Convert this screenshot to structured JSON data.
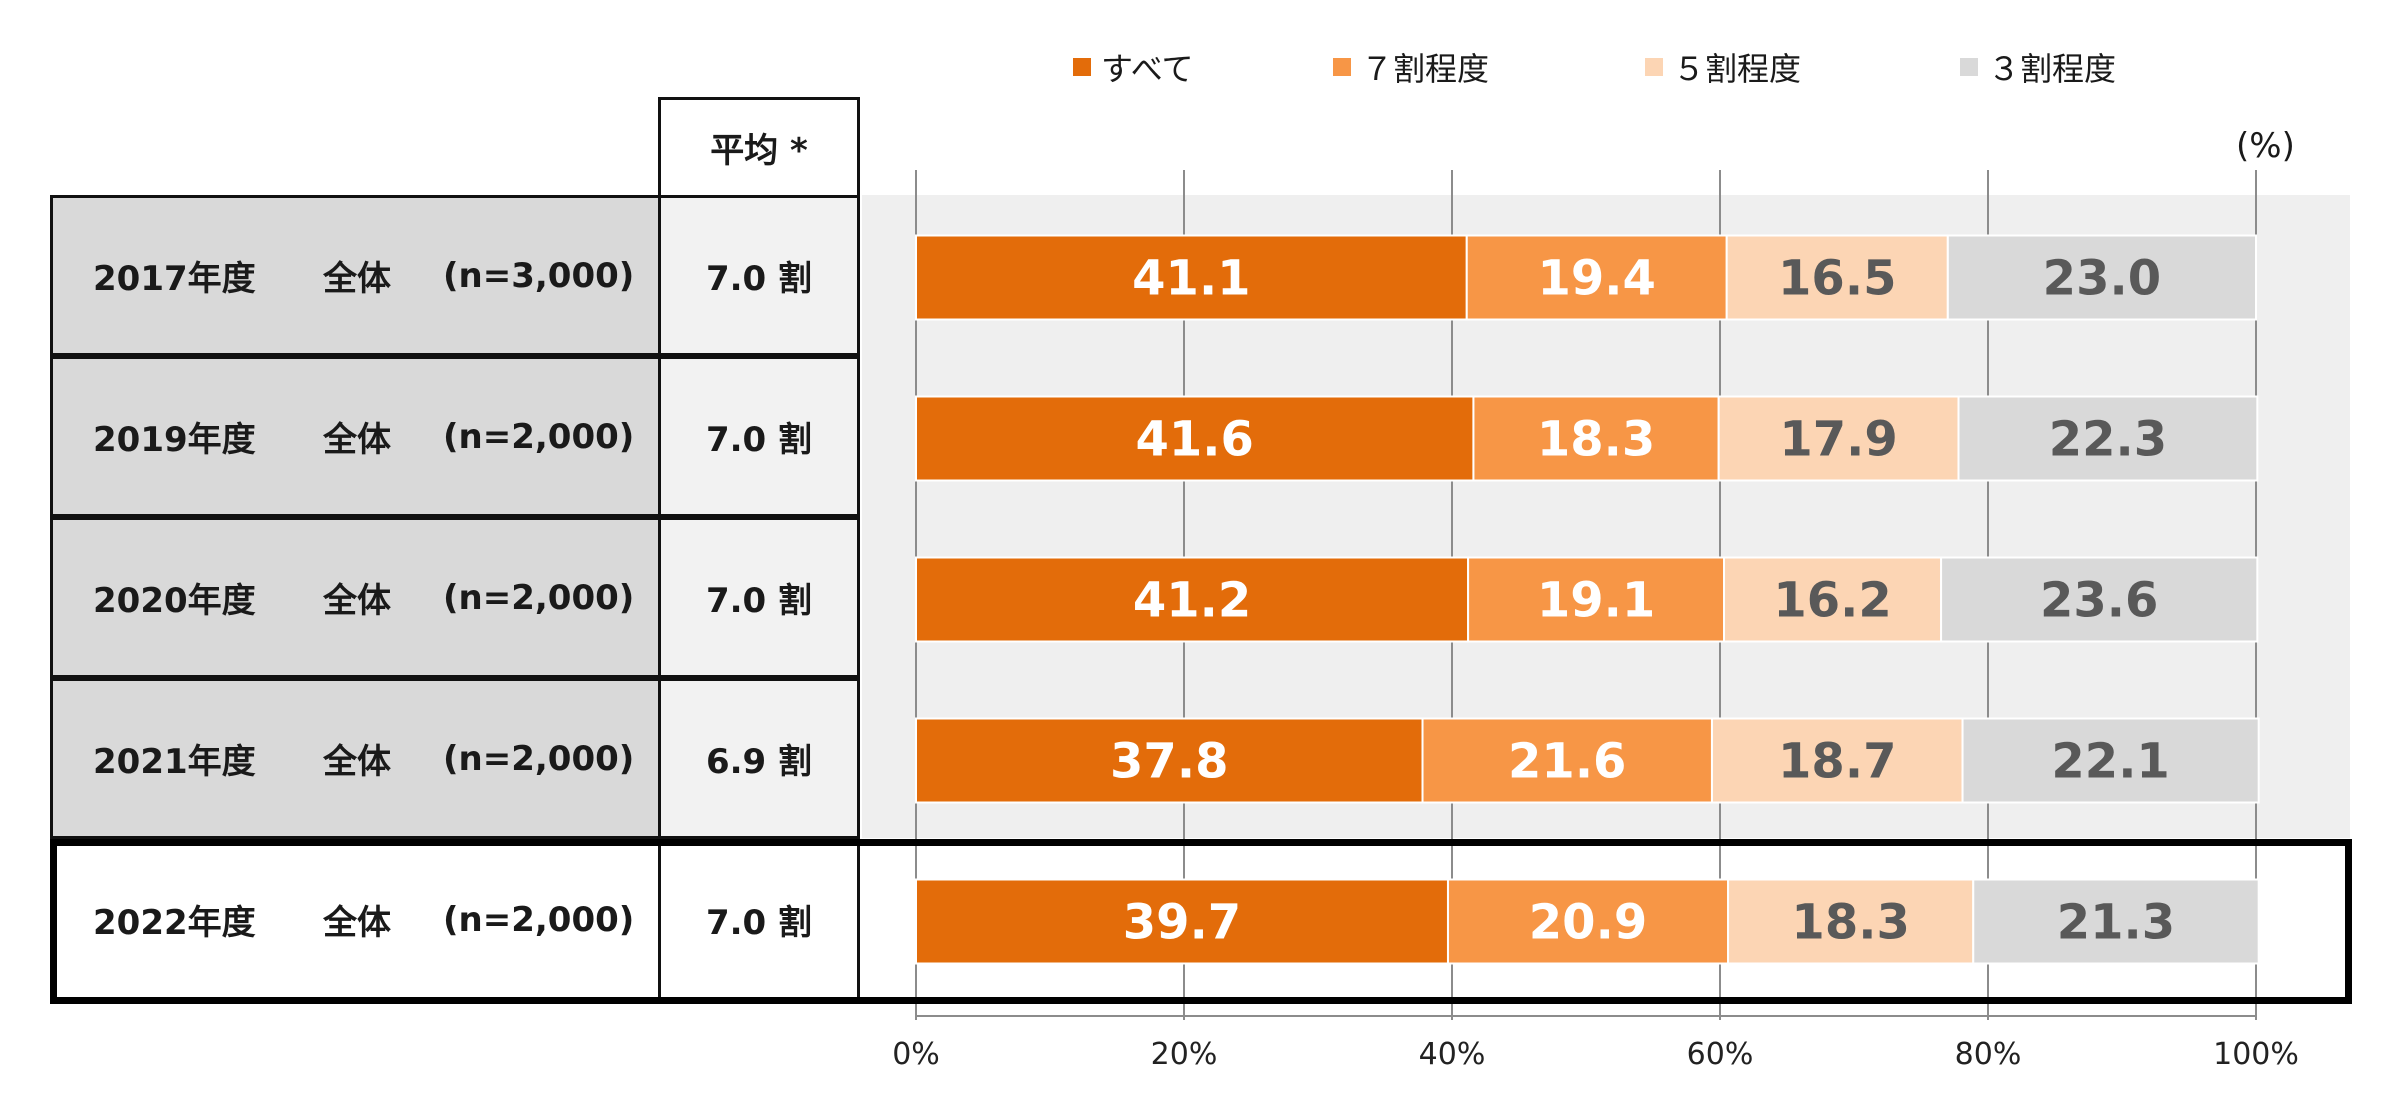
{
  "chart_data": {
    "type": "bar",
    "orientation": "horizontal-stacked",
    "unit_label": "(%)",
    "xlim": [
      0,
      100
    ],
    "x_ticks": [
      "0%",
      "20%",
      "40%",
      "60%",
      "80%",
      "100%"
    ],
    "legend_position": "top",
    "table_header": "平均 *",
    "categories": [
      {
        "year": "2017年度",
        "group": "全体",
        "n": "(n=3,000)",
        "avg": "7.0 割"
      },
      {
        "year": "2019年度",
        "group": "全体",
        "n": "(n=2,000)",
        "avg": "7.0 割"
      },
      {
        "year": "2020年度",
        "group": "全体",
        "n": "(n=2,000)",
        "avg": "7.0 割"
      },
      {
        "year": "2021年度",
        "group": "全体",
        "n": "(n=2,000)",
        "avg": "6.9 割"
      },
      {
        "year": "2022年度",
        "group": "全体",
        "n": "(n=2,000)",
        "avg": "7.0 割"
      }
    ],
    "series": [
      {
        "name": "すべて",
        "color": "#e36c0a",
        "text_color": "#ffffff",
        "values": [
          41.1,
          41.6,
          41.2,
          37.8,
          39.7
        ]
      },
      {
        "name": "７割程度",
        "color": "#f79646",
        "text_color": "#ffffff",
        "values": [
          19.4,
          18.3,
          19.1,
          21.6,
          20.9
        ]
      },
      {
        "name": "５割程度",
        "color": "#fcd5b4",
        "text_color": "#595959",
        "values": [
          16.5,
          17.9,
          16.2,
          18.7,
          18.3
        ]
      },
      {
        "name": "３割程度",
        "color": "#d9d9d9",
        "text_color": "#595959",
        "values": [
          23.0,
          22.3,
          23.6,
          22.1,
          21.3
        ]
      }
    ],
    "highlighted_category": "2022年度"
  }
}
